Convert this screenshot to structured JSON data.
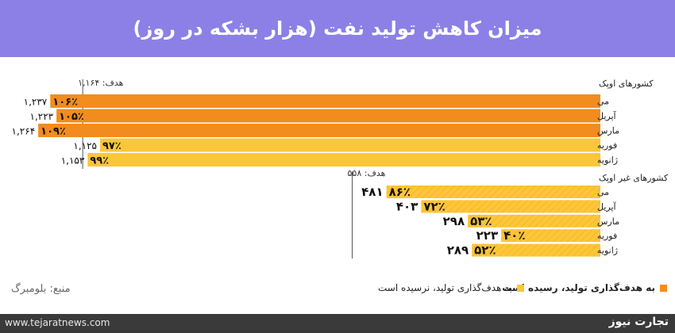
{
  "title": "میزان کاهش تولید نفت (هزار بشکه در روز)",
  "source": "منبع: بلومبرگ",
  "footer": {
    "url": "www.tejaratnews.com",
    "logo": "تجارت نیوز"
  },
  "legend": {
    "reached": "به هدف‌گذاری تولید، رسیده است",
    "not_reached": "به هدف‌گذاری تولید، نرسیده است"
  },
  "colors": {
    "reached": "#f28c1e",
    "not_reached": "#fcc63a",
    "header": "#8c80e6"
  },
  "chart_data": [
    {
      "type": "bar",
      "title": "کشورهای اوپک",
      "target_label": "هدف: ۱,۱۶۴",
      "target": 1164,
      "categories": [
        "می",
        "آپریل",
        "مارس",
        "فوریه",
        "ژانویه"
      ],
      "values": [
        1237,
        1223,
        1264,
        1125,
        1153
      ],
      "value_labels": [
        "۱,۲۳۷",
        "۱,۲۲۳",
        "۱,۲۶۴",
        "۱,۱۲۵",
        "۱,۱۵۳"
      ],
      "percent_labels": [
        "۱۰۶٪",
        "۱۰۵٪",
        "۱۰۹٪",
        "۹۷٪",
        "۹۹٪"
      ],
      "reached": [
        true,
        true,
        true,
        false,
        false
      ]
    },
    {
      "type": "bar",
      "title": "کشورهای غیر اوپک",
      "target_label": "هدف: ۵۵۸",
      "target": 558,
      "categories": [
        "می",
        "آپریل",
        "مارس",
        "فوریه",
        "ژانویه"
      ],
      "values": [
        481,
        403,
        298,
        223,
        289
      ],
      "value_labels": [
        "۴۸۱",
        "۴۰۳",
        "۲۹۸",
        "۲۲۳",
        "۲۸۹"
      ],
      "percent_labels": [
        "۸۶٪",
        "۷۲٪",
        "۵۳٪",
        "۴۰٪",
        "۵۲٪"
      ],
      "reached": [
        false,
        false,
        false,
        false,
        false
      ]
    }
  ]
}
